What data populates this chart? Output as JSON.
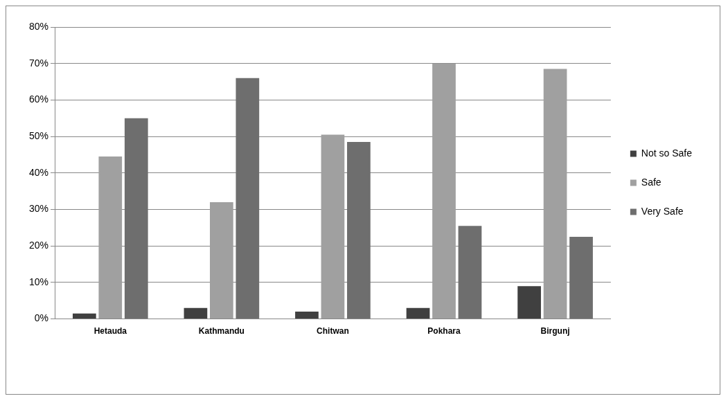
{
  "chart_data": {
    "type": "bar",
    "categories": [
      "Hetauda",
      "Kathmandu",
      "Chitwan",
      "Pokhara",
      "Birgunj"
    ],
    "series": [
      {
        "name": "Not so Safe",
        "color": "#404040",
        "values": [
          1.5,
          3,
          2,
          3,
          9
        ]
      },
      {
        "name": "Safe",
        "color": "#a0a0a0",
        "values": [
          44.5,
          32,
          50.5,
          70,
          68.5
        ]
      },
      {
        "name": "Very Safe",
        "color": "#6e6e6e",
        "values": [
          55,
          66,
          48.5,
          25.5,
          22.5
        ]
      }
    ],
    "ylim": [
      0,
      80
    ],
    "yticks": [
      {
        "value": 0,
        "label": "0%"
      },
      {
        "value": 10,
        "label": "10%"
      },
      {
        "value": 20,
        "label": "20%"
      },
      {
        "value": 30,
        "label": "30%"
      },
      {
        "value": 40,
        "label": "40%"
      },
      {
        "value": 50,
        "label": "50%"
      },
      {
        "value": 60,
        "label": "60%"
      },
      {
        "value": 70,
        "label": "70%"
      },
      {
        "value": 80,
        "label": "80%"
      }
    ],
    "grid": "y",
    "legend": "right"
  }
}
